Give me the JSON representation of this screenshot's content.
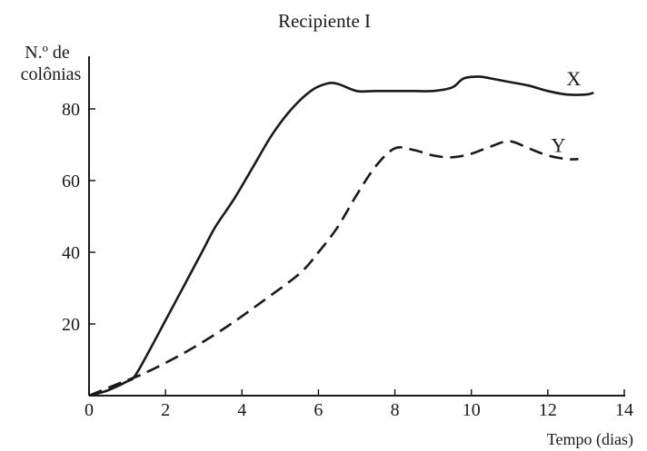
{
  "chart_data": {
    "type": "line",
    "title": "Recipiente I",
    "ylabel_lines": [
      "N.º de",
      "colônias"
    ],
    "xlabel": "Tempo (dias)",
    "xlim": [
      0,
      14
    ],
    "ylim": [
      0,
      80
    ],
    "x_ticks": [
      0,
      2,
      4,
      6,
      8,
      10,
      12,
      14
    ],
    "y_ticks": [
      20,
      40,
      60,
      80
    ],
    "grid": false,
    "legend": "none",
    "series": [
      {
        "name": "X",
        "style": "solid",
        "color": "#1a1a1a",
        "points": [
          [
            0,
            0
          ],
          [
            0.5,
            1.5
          ],
          [
            1.0,
            4.0
          ],
          [
            1.2,
            5.5
          ],
          [
            1.6,
            13
          ],
          [
            2.0,
            21
          ],
          [
            2.5,
            31
          ],
          [
            3.0,
            41
          ],
          [
            3.3,
            47
          ],
          [
            3.8,
            55
          ],
          [
            4.3,
            64
          ],
          [
            4.8,
            73
          ],
          [
            5.3,
            80
          ],
          [
            5.8,
            85
          ],
          [
            6.2,
            87
          ],
          [
            6.5,
            87
          ],
          [
            7.0,
            85
          ],
          [
            7.5,
            85
          ],
          [
            8.0,
            85
          ],
          [
            8.5,
            85
          ],
          [
            9.0,
            85
          ],
          [
            9.5,
            86
          ],
          [
            9.8,
            88.5
          ],
          [
            10.2,
            89
          ],
          [
            10.5,
            88.5
          ],
          [
            11.0,
            87.5
          ],
          [
            11.5,
            86.5
          ],
          [
            12.0,
            85
          ],
          [
            12.5,
            84
          ],
          [
            13.0,
            84
          ],
          [
            13.2,
            84.5
          ]
        ]
      },
      {
        "name": "Y",
        "style": "dashed",
        "color": "#1a1a1a",
        "points": [
          [
            0,
            0
          ],
          [
            0.8,
            3.5
          ],
          [
            1.5,
            6.5
          ],
          [
            2.5,
            12
          ],
          [
            3.5,
            18.5
          ],
          [
            4.5,
            26
          ],
          [
            5.5,
            34
          ],
          [
            6.0,
            40
          ],
          [
            6.5,
            47
          ],
          [
            7.0,
            56
          ],
          [
            7.5,
            64
          ],
          [
            8.0,
            69
          ],
          [
            8.5,
            68.5
          ],
          [
            9.0,
            67
          ],
          [
            9.5,
            66.5
          ],
          [
            10.0,
            67.5
          ],
          [
            10.5,
            69.5
          ],
          [
            11.0,
            71
          ],
          [
            11.5,
            69
          ],
          [
            12.0,
            67
          ],
          [
            12.5,
            66
          ],
          [
            12.8,
            66
          ]
        ]
      }
    ]
  },
  "colors": {
    "ink": "#1a1a1a",
    "background": "#ffffff"
  }
}
